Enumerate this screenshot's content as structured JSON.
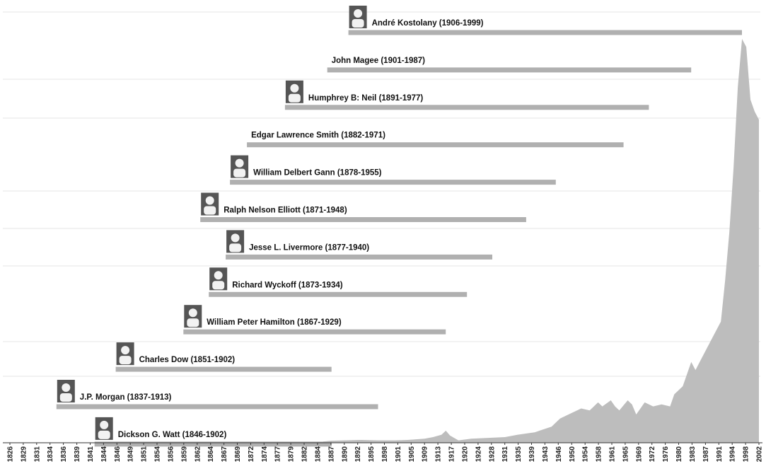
{
  "colors": {
    "lifespan_bar": "#b0b0b0",
    "market_area": "#bdbdbd",
    "guide_line": "#e4e4e4",
    "portrait_bg": "#555555",
    "portrait_fg": "#f2f2f2",
    "axis_line": "#333333",
    "label_text": "#111111"
  },
  "chart_data": {
    "type": "timeline",
    "xlabel": "",
    "ylabel": "",
    "xlim": [
      1826,
      2003
    ],
    "x_tick_labels": [
      "1826",
      "1829",
      "1831",
      "1834",
      "1836",
      "1839",
      "1841",
      "1844",
      "1846",
      "1849",
      "1851",
      "1854",
      "1856",
      "1859",
      "1862",
      "1864",
      "1867",
      "1869",
      "1872",
      "1874",
      "1877",
      "1879",
      "1882",
      "1884",
      "1887",
      "1890",
      "1892",
      "1895",
      "1898",
      "1901",
      "1905",
      "1909",
      "1913",
      "1917",
      "1920",
      "1924",
      "1928",
      "1931",
      "1935",
      "1939",
      "1943",
      "1946",
      "1950",
      "1954",
      "1958",
      "1961",
      "1965",
      "1969",
      "1972",
      "1976",
      "1980",
      "1983",
      "1987",
      "1991",
      "1994",
      "1998",
      "2002"
    ],
    "people": [
      {
        "label": "André Kostolany (1906-1999)",
        "start": 1906,
        "end": 1999,
        "portrait": true
      },
      {
        "label": "John Magee (1901-1987)",
        "start": 1901,
        "end": 1987,
        "portrait": false
      },
      {
        "label": "Humphrey B: Neil (1891-1977)",
        "start": 1891,
        "end": 1977,
        "portrait": true
      },
      {
        "label": "Edgar Lawrence Smith (1882-1971)",
        "start": 1882,
        "end": 1971,
        "portrait": false
      },
      {
        "label": "William Delbert Gann (1878-1955)",
        "start": 1878,
        "end": 1955,
        "portrait": true
      },
      {
        "label": "Ralph Nelson Elliott (1871-1948)",
        "start": 1871,
        "end": 1948,
        "portrait": true
      },
      {
        "label": "Jesse L. Livermore (1877-1940)",
        "start": 1877,
        "end": 1940,
        "portrait": true
      },
      {
        "label": "Richard Wyckoff (1873-1934)",
        "start": 1873,
        "end": 1934,
        "portrait": true
      },
      {
        "label": "William Peter Hamilton (1867-1929)",
        "start": 1867,
        "end": 1929,
        "portrait": true
      },
      {
        "label": "Charles Dow (1851-1902)",
        "start": 1851,
        "end": 1902,
        "portrait": true
      },
      {
        "label": "J.P. Morgan (1837-1913)",
        "start": 1837,
        "end": 1913,
        "portrait": true
      },
      {
        "label": "Dickson G. Watt (1846-1902)",
        "start": 1846,
        "end": 1902,
        "portrait": true
      }
    ],
    "market_series": {
      "x": [
        1900,
        1902,
        1905,
        1909,
        1913,
        1917,
        1920,
        1924,
        1926,
        1928,
        1929,
        1930,
        1932,
        1935,
        1939,
        1943,
        1946,
        1950,
        1954,
        1956,
        1958,
        1961,
        1963,
        1965,
        1966,
        1968,
        1969,
        1970,
        1972,
        1973,
        1974,
        1976,
        1978,
        1980,
        1982,
        1983,
        1985,
        1987,
        1988,
        1990,
        1992,
        1994,
        1995,
        1996,
        1997,
        1998,
        1999,
        2000,
        2001,
        2002,
        2003
      ],
      "values": [
        0.3,
        0.5,
        0.6,
        0.7,
        0.6,
        0.6,
        0.7,
        1.0,
        1.4,
        2.0,
        3.0,
        1.8,
        0.6,
        1.0,
        1.2,
        1.4,
        2.0,
        2.6,
        4.0,
        6.0,
        7.0,
        8.5,
        8.0,
        10.0,
        9.0,
        10.5,
        9.0,
        8.0,
        10.5,
        9.5,
        7.0,
        10.0,
        9.0,
        9.5,
        9.0,
        12.0,
        14.0,
        20.0,
        18.0,
        22.0,
        26.0,
        30.0,
        40.0,
        52.0,
        68.0,
        88.0,
        100.0,
        98.0,
        85.0,
        82.0,
        80.0
      ]
    }
  }
}
